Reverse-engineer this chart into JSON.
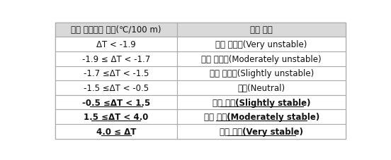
{
  "header": [
    "수직 온도변화 범위(℃/100 m)",
    "역전 강도"
  ],
  "rows": [
    [
      "ΔT < -1.9",
      "매우 불안정(Very unstable)"
    ],
    [
      "-1.9 ≤ ΔT < -1.7",
      "중간 불안정(Moderately unstable)"
    ],
    [
      "-1.7 ≤ΔT < -1.5",
      "약한 불안정(Slightly unstable)"
    ],
    [
      "-1.5 ≤ΔT < -0.5",
      "중립(Neutral)"
    ],
    [
      "-0.5 ≤ΔT < 1.5",
      "약한 안정(Slightly stable)"
    ],
    [
      "1.5 ≤ΔT < 4.0",
      "중간 안정(Moderately stable)"
    ],
    [
      "4.0 ≤ ΔT",
      "매우 안정(Very stable)"
    ]
  ],
  "underline_rows": [
    4,
    5,
    6
  ],
  "header_bg": "#d9d9d9",
  "border_color": "#aaaaaa",
  "text_color": "#111111",
  "bold_rows": [
    4,
    5,
    6
  ],
  "col_split": 0.42,
  "figsize": [
    5.52,
    2.28
  ],
  "dpi": 100,
  "fontsize": 8.5
}
